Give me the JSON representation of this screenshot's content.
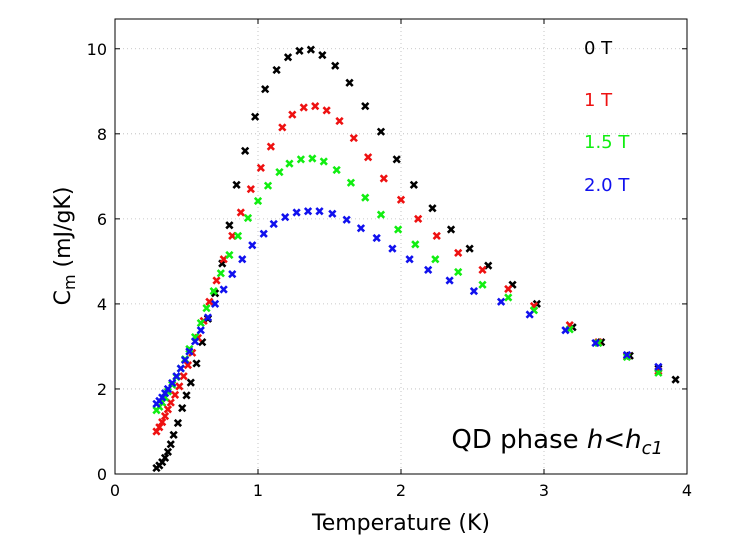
{
  "chart_data": {
    "type": "scatter",
    "title": "",
    "xlabel": "Temperature (K)",
    "ylabel": "C",
    "ylabel_subscript": "m",
    "ylabel_suffix": " (mJ/gK)",
    "xlim": [
      0,
      4
    ],
    "ylim": [
      0,
      10.7
    ],
    "xticks": [
      0,
      1,
      2,
      3,
      4
    ],
    "yticks": [
      0,
      2,
      4,
      6,
      8,
      10
    ],
    "grid": true,
    "legend_position": "top-right",
    "annotation": {
      "text": "QD phase ",
      "italic_text": "h<h",
      "italic_subscript": "c1",
      "position": "bottom-right"
    },
    "series": [
      {
        "name": "0 T",
        "color": "#000000",
        "points": [
          [
            0.29,
            0.14
          ],
          [
            0.31,
            0.2
          ],
          [
            0.33,
            0.28
          ],
          [
            0.35,
            0.38
          ],
          [
            0.37,
            0.52
          ],
          [
            0.39,
            0.7
          ],
          [
            0.41,
            0.92
          ],
          [
            0.44,
            1.2
          ],
          [
            0.47,
            1.55
          ],
          [
            0.5,
            1.85
          ],
          [
            0.53,
            2.15
          ],
          [
            0.57,
            2.6
          ],
          [
            0.61,
            3.1
          ],
          [
            0.65,
            3.65
          ],
          [
            0.7,
            4.25
          ],
          [
            0.75,
            4.95
          ],
          [
            0.8,
            5.85
          ],
          [
            0.85,
            6.8
          ],
          [
            0.91,
            7.6
          ],
          [
            0.98,
            8.4
          ],
          [
            1.05,
            9.05
          ],
          [
            1.13,
            9.5
          ],
          [
            1.21,
            9.8
          ],
          [
            1.29,
            9.95
          ],
          [
            1.37,
            9.98
          ],
          [
            1.45,
            9.85
          ],
          [
            1.54,
            9.6
          ],
          [
            1.64,
            9.2
          ],
          [
            1.75,
            8.65
          ],
          [
            1.86,
            8.05
          ],
          [
            1.97,
            7.4
          ],
          [
            2.09,
            6.8
          ],
          [
            2.22,
            6.25
          ],
          [
            2.35,
            5.75
          ],
          [
            2.48,
            5.3
          ],
          [
            2.61,
            4.9
          ],
          [
            2.78,
            4.45
          ],
          [
            2.95,
            4.0
          ],
          [
            3.2,
            3.45
          ],
          [
            3.4,
            3.1
          ],
          [
            3.6,
            2.78
          ],
          [
            3.8,
            2.48
          ],
          [
            3.92,
            2.22
          ]
        ]
      },
      {
        "name": "1 T",
        "color": "#ee1111",
        "points": [
          [
            0.29,
            1.0
          ],
          [
            0.31,
            1.1
          ],
          [
            0.33,
            1.22
          ],
          [
            0.35,
            1.36
          ],
          [
            0.37,
            1.52
          ],
          [
            0.39,
            1.68
          ],
          [
            0.42,
            1.86
          ],
          [
            0.45,
            2.06
          ],
          [
            0.48,
            2.3
          ],
          [
            0.51,
            2.56
          ],
          [
            0.54,
            2.85
          ],
          [
            0.58,
            3.2
          ],
          [
            0.62,
            3.6
          ],
          [
            0.66,
            4.05
          ],
          [
            0.71,
            4.55
          ],
          [
            0.76,
            5.05
          ],
          [
            0.82,
            5.6
          ],
          [
            0.88,
            6.15
          ],
          [
            0.95,
            6.7
          ],
          [
            1.02,
            7.2
          ],
          [
            1.09,
            7.7
          ],
          [
            1.17,
            8.15
          ],
          [
            1.24,
            8.45
          ],
          [
            1.32,
            8.62
          ],
          [
            1.4,
            8.65
          ],
          [
            1.48,
            8.55
          ],
          [
            1.57,
            8.3
          ],
          [
            1.67,
            7.9
          ],
          [
            1.77,
            7.45
          ],
          [
            1.88,
            6.95
          ],
          [
            2.0,
            6.45
          ],
          [
            2.12,
            6.0
          ],
          [
            2.25,
            5.6
          ],
          [
            2.4,
            5.2
          ],
          [
            2.57,
            4.8
          ],
          [
            2.75,
            4.35
          ],
          [
            2.93,
            3.95
          ],
          [
            3.18,
            3.5
          ],
          [
            3.38,
            3.1
          ],
          [
            3.58,
            2.78
          ],
          [
            3.8,
            2.42
          ]
        ]
      },
      {
        "name": "1.5 T",
        "color": "#11ee11",
        "points": [
          [
            0.29,
            1.5
          ],
          [
            0.31,
            1.58
          ],
          [
            0.33,
            1.68
          ],
          [
            0.35,
            1.8
          ],
          [
            0.37,
            1.94
          ],
          [
            0.4,
            2.1
          ],
          [
            0.43,
            2.28
          ],
          [
            0.46,
            2.48
          ],
          [
            0.49,
            2.7
          ],
          [
            0.52,
            2.94
          ],
          [
            0.56,
            3.22
          ],
          [
            0.6,
            3.55
          ],
          [
            0.64,
            3.9
          ],
          [
            0.69,
            4.3
          ],
          [
            0.74,
            4.72
          ],
          [
            0.8,
            5.15
          ],
          [
            0.86,
            5.6
          ],
          [
            0.93,
            6.02
          ],
          [
            1.0,
            6.42
          ],
          [
            1.07,
            6.78
          ],
          [
            1.15,
            7.1
          ],
          [
            1.22,
            7.3
          ],
          [
            1.3,
            7.4
          ],
          [
            1.38,
            7.42
          ],
          [
            1.46,
            7.35
          ],
          [
            1.55,
            7.15
          ],
          [
            1.65,
            6.85
          ],
          [
            1.75,
            6.5
          ],
          [
            1.86,
            6.1
          ],
          [
            1.98,
            5.75
          ],
          [
            2.1,
            5.4
          ],
          [
            2.24,
            5.05
          ],
          [
            2.4,
            4.75
          ],
          [
            2.57,
            4.45
          ],
          [
            2.75,
            4.15
          ],
          [
            2.93,
            3.85
          ],
          [
            3.18,
            3.4
          ],
          [
            3.38,
            3.08
          ],
          [
            3.58,
            2.75
          ],
          [
            3.8,
            2.38
          ]
        ]
      },
      {
        "name": "2.0 T",
        "color": "#1111ee",
        "points": [
          [
            0.29,
            1.65
          ],
          [
            0.31,
            1.72
          ],
          [
            0.33,
            1.8
          ],
          [
            0.35,
            1.9
          ],
          [
            0.37,
            2.0
          ],
          [
            0.4,
            2.14
          ],
          [
            0.43,
            2.3
          ],
          [
            0.46,
            2.48
          ],
          [
            0.49,
            2.68
          ],
          [
            0.52,
            2.88
          ],
          [
            0.56,
            3.12
          ],
          [
            0.6,
            3.38
          ],
          [
            0.65,
            3.68
          ],
          [
            0.7,
            4.0
          ],
          [
            0.76,
            4.34
          ],
          [
            0.82,
            4.7
          ],
          [
            0.89,
            5.05
          ],
          [
            0.96,
            5.38
          ],
          [
            1.04,
            5.65
          ],
          [
            1.11,
            5.88
          ],
          [
            1.19,
            6.04
          ],
          [
            1.27,
            6.15
          ],
          [
            1.35,
            6.18
          ],
          [
            1.43,
            6.18
          ],
          [
            1.52,
            6.12
          ],
          [
            1.62,
            5.98
          ],
          [
            1.72,
            5.78
          ],
          [
            1.83,
            5.55
          ],
          [
            1.94,
            5.3
          ],
          [
            2.06,
            5.05
          ],
          [
            2.19,
            4.8
          ],
          [
            2.34,
            4.55
          ],
          [
            2.51,
            4.3
          ],
          [
            2.7,
            4.05
          ],
          [
            2.9,
            3.75
          ],
          [
            3.15,
            3.38
          ],
          [
            3.36,
            3.08
          ],
          [
            3.58,
            2.8
          ],
          [
            3.8,
            2.52
          ]
        ]
      }
    ]
  }
}
